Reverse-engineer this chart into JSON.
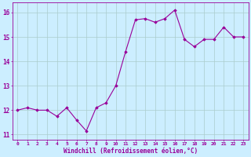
{
  "x": [
    0,
    1,
    2,
    3,
    4,
    5,
    6,
    7,
    8,
    9,
    10,
    11,
    12,
    13,
    14,
    15,
    16,
    17,
    18,
    19,
    20,
    21,
    22,
    23
  ],
  "y": [
    12.0,
    12.1,
    12.0,
    12.0,
    11.75,
    12.1,
    11.6,
    11.15,
    12.1,
    12.3,
    13.0,
    14.4,
    15.7,
    15.75,
    15.6,
    15.75,
    16.1,
    14.9,
    14.6,
    14.9,
    14.9,
    15.4,
    15.0,
    15.0
  ],
  "line_color": "#990099",
  "marker": "D",
  "marker_size": 1.8,
  "bg_color": "#cceeff",
  "grid_color": "#aacccc",
  "xlabel": "Windchill (Refroidissement éolien,°C)",
  "xlabel_color": "#990099",
  "tick_color": "#990099",
  "label_color": "#990099",
  "ylim": [
    10.8,
    16.4
  ],
  "xlim": [
    -0.5,
    23.5
  ],
  "yticks": [
    11,
    12,
    13,
    14,
    15,
    16
  ],
  "xticks": [
    0,
    1,
    2,
    3,
    4,
    5,
    6,
    7,
    8,
    9,
    10,
    11,
    12,
    13,
    14,
    15,
    16,
    17,
    18,
    19,
    20,
    21,
    22,
    23
  ],
  "xtick_labels": [
    "0",
    "1",
    "2",
    "3",
    "4",
    "5",
    "6",
    "7",
    "8",
    "9",
    "10",
    "11",
    "12",
    "13",
    "14",
    "15",
    "16",
    "17",
    "18",
    "19",
    "20",
    "21",
    "22",
    "23"
  ],
  "ytick_labels": [
    "11",
    "12",
    "13",
    "14",
    "15",
    "16"
  ]
}
